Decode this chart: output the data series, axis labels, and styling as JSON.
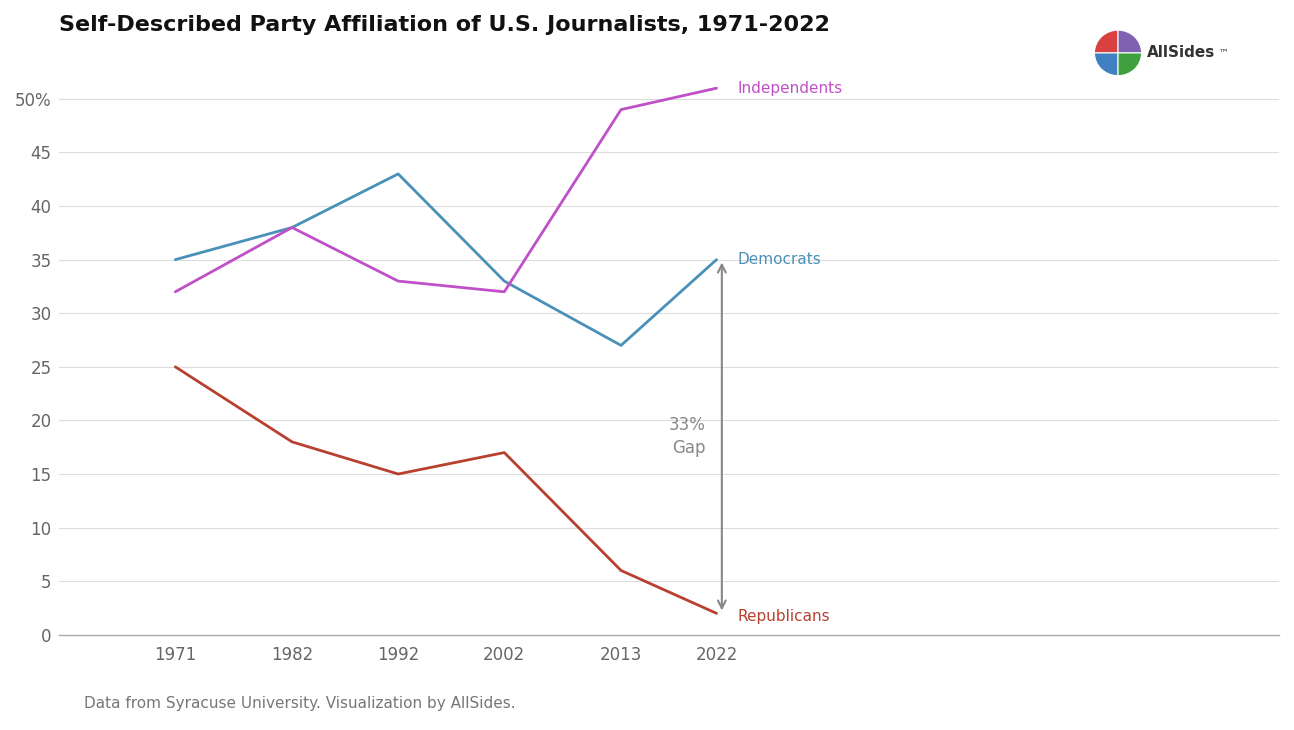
{
  "title": "Self-Described Party Affiliation of U.S. Journalists, 1971-2022",
  "subtitle": "Data from Syracuse University. Visualization by AllSides.",
  "years": [
    1971,
    1982,
    1992,
    2002,
    2013,
    2022
  ],
  "democrats": [
    35,
    38,
    43,
    33,
    27,
    35
  ],
  "independents": [
    32,
    38,
    33,
    32,
    49,
    51
  ],
  "republicans": [
    25,
    18,
    15,
    17,
    6,
    2
  ],
  "democrat_color": "#4a90b8",
  "independent_color": "#c050c8",
  "republican_color": "#b84030",
  "gap_arrow_color": "#888888",
  "background_color": "#ffffff",
  "ylabel_ticks": [
    0,
    5,
    10,
    15,
    20,
    25,
    30,
    35,
    40,
    45,
    50
  ],
  "ylim": [
    0,
    54
  ],
  "gap_label_line1": "33%",
  "gap_label_line2": "Gap",
  "line_width": 2.0,
  "allsides_text": "AllSides",
  "logo_colors": [
    "#d94040",
    "#8060b0",
    "#4080c0",
    "#40a040"
  ]
}
